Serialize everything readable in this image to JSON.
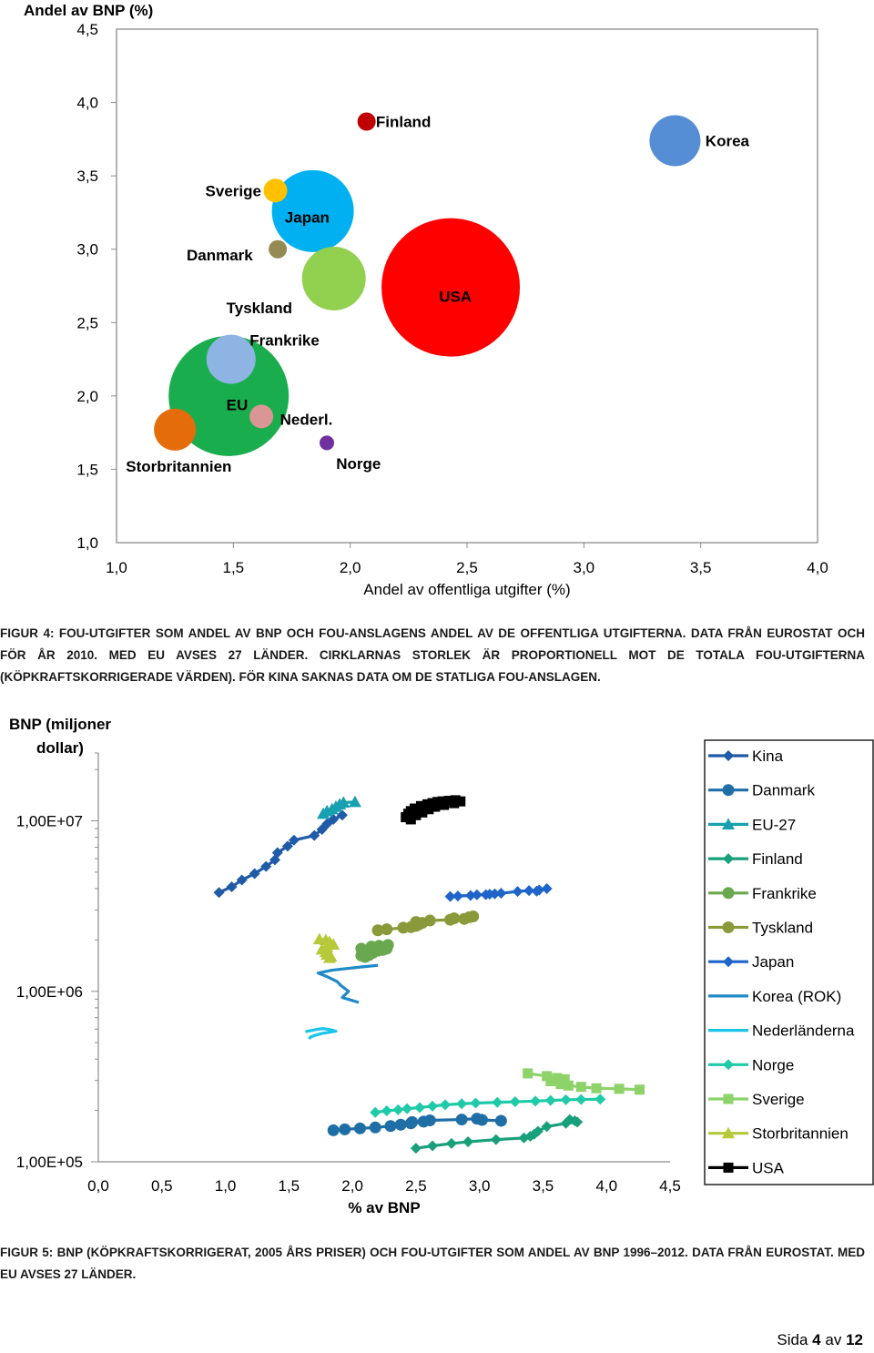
{
  "figure4": {
    "caption": "FIGUR 4: FoU-utgifter som andel av BNP och FoU-anslagens andel av de offentliga utgifterna. Data från Eurostat och för år 2010. Med EU avses 27 länder. Cirklarnas storlek är proportionell mot de totala FoU-utgifterna (köpkraftskorrigerade värden). För Kina saknas data om de statliga FoU-anslagen."
  },
  "figure5": {
    "caption": "FIGUR 5: BNP (köpkraftskorrigerat, 2005 års priser) och FoU-utgifter som andel av BNP 1996–2012. Data från Eurostat. Med EU avses 27 länder."
  },
  "footer": {
    "prefix": "Sida",
    "page": "4",
    "middle": "av",
    "total": "12"
  },
  "chart_data": [
    {
      "type": "scatter",
      "variant": "bubble",
      "title": "",
      "xlabel": "Andel av offentliga utgifter (%)",
      "ylabel": "Andel av BNP (%)",
      "xlim": [
        1.0,
        4.0
      ],
      "ylim": [
        1.0,
        4.5
      ],
      "xticks": [
        "1,0",
        "1,5",
        "2,0",
        "2,5",
        "3,0",
        "3,5",
        "4,0"
      ],
      "yticks": [
        "1,0",
        "1,5",
        "2,0",
        "2,5",
        "3,0",
        "3,5",
        "4,0",
        "4,5"
      ],
      "grid": false,
      "legend": "none",
      "points": [
        {
          "name": "EU",
          "x": 1.48,
          "y": 2.0,
          "size": 66,
          "color": "#1aad4d",
          "label_x": 1.47,
          "label_y": 1.94
        },
        {
          "name": "USA",
          "x": 2.43,
          "y": 2.74,
          "size": 76,
          "color": "#ff0000",
          "label_x": 2.38,
          "label_y": 2.68
        },
        {
          "name": "Japan",
          "x": 1.84,
          "y": 3.26,
          "size": 45,
          "color": "#00b0f0",
          "label_x": 1.72,
          "label_y": 3.22
        },
        {
          "name": "Tyskland",
          "x": 1.93,
          "y": 2.8,
          "size": 35,
          "color": "#92d050",
          "label_x": 1.47,
          "label_y": 2.6
        },
        {
          "name": "Frankrike",
          "x": 1.49,
          "y": 2.25,
          "size": 27,
          "color": "#8db4e2",
          "label_x": 1.57,
          "label_y": 2.38
        },
        {
          "name": "Korea",
          "x": 3.39,
          "y": 3.74,
          "size": 28,
          "color": "#558ed5",
          "label_x": 3.52,
          "label_y": 3.74
        },
        {
          "name": "Storbritannien",
          "x": 1.25,
          "y": 1.77,
          "size": 23,
          "color": "#e46c0a",
          "label_x": 1.04,
          "label_y": 1.52
        },
        {
          "name": "Finland",
          "x": 2.07,
          "y": 3.87,
          "size": 10,
          "color": "#c00000",
          "label_x": 2.11,
          "label_y": 3.87
        },
        {
          "name": "Sverige",
          "x": 1.68,
          "y": 3.4,
          "size": 13,
          "color": "#ffc000",
          "label_x": 1.38,
          "label_y": 3.4
        },
        {
          "name": "Danmark",
          "x": 1.69,
          "y": 3.0,
          "size": 10,
          "color": "#948a54",
          "label_x": 1.3,
          "label_y": 2.96
        },
        {
          "name": "Nederl.",
          "x": 1.62,
          "y": 1.86,
          "size": 13,
          "color": "#d99694",
          "label_x": 1.7,
          "label_y": 1.84
        },
        {
          "name": "Norge",
          "x": 1.9,
          "y": 1.68,
          "size": 8,
          "color": "#7030a0",
          "label_x": 1.94,
          "label_y": 1.54
        }
      ]
    },
    {
      "type": "line",
      "variant": "log-y",
      "title": "",
      "xlabel": "% av BNP",
      "ylabel": "BNP (miljoner dollar)",
      "xlim": [
        0.0,
        4.5
      ],
      "ylim": [
        100000,
        25000000
      ],
      "yscale": "log",
      "xticks": [
        "0,0",
        "0,5",
        "1,0",
        "1,5",
        "2,0",
        "2,5",
        "3,0",
        "3,5",
        "4,0",
        "4,5"
      ],
      "yticks": [
        "1,00E+05",
        "1,00E+06",
        "1,00E+07"
      ],
      "yticks_values": [
        100000,
        1000000,
        10000000
      ],
      "grid": false,
      "legend": "right",
      "series": [
        {
          "name": "Kina",
          "color": "#1f5ba6",
          "marker": "diamond",
          "x": [
            0.95,
            1.05,
            1.13,
            1.23,
            1.32,
            1.39,
            1.41,
            1.49,
            1.54,
            1.7,
            1.76,
            1.8,
            1.85,
            1.92
          ],
          "y": [
            3800000.0,
            4100000.0,
            4500000.0,
            4900000.0,
            5400000.0,
            5900000.0,
            6500000.0,
            7100000.0,
            7700000.0,
            8200000.0,
            8900000.0,
            9600000.0,
            10200000.0,
            10800000.0
          ]
        },
        {
          "name": "Danmark",
          "color": "#1f6fa6",
          "marker": "circle",
          "x": [
            1.85,
            1.94,
            2.06,
            2.18,
            2.3,
            2.38,
            2.46,
            2.47,
            2.56,
            2.61,
            2.86,
            2.98,
            3.02,
            3.17
          ],
          "y": [
            153000,
            155000,
            157000,
            159000,
            162000,
            165000,
            168000,
            171000,
            172000,
            175000,
            177000,
            179000,
            176000,
            174000
          ]
        },
        {
          "name": "EU-27",
          "color": "#17a0b0",
          "marker": "triangle",
          "x": [
            1.77,
            1.8,
            1.84,
            1.87,
            1.9,
            1.93,
            2.02
          ],
          "y": [
            11000000.0,
            11400000.0,
            11700000.0,
            12100000.0,
            12500000.0,
            12800000.0,
            12900000.0
          ]
        },
        {
          "name": "Finland",
          "color": "#18a07a",
          "marker": "diamond",
          "x": [
            2.5,
            2.63,
            2.78,
            2.91,
            3.13,
            3.35,
            3.4,
            3.43,
            3.46,
            3.53,
            3.68,
            3.77,
            3.75,
            3.71
          ],
          "y": [
            120000,
            124000,
            128000,
            131000,
            135000,
            138000,
            141000,
            145000,
            151000,
            161000,
            168000,
            171000,
            174000,
            177000
          ]
        },
        {
          "name": "Frankrike",
          "color": "#6aa84f",
          "marker": "circle",
          "x": [
            2.07,
            2.09,
            2.1,
            2.07,
            2.1,
            2.13,
            2.16,
            2.2,
            2.18,
            2.15,
            2.21,
            2.28,
            2.27,
            2.24
          ],
          "y": [
            1780000.0,
            1720000.0,
            1660000.0,
            1620000.0,
            1590000.0,
            1630000.0,
            1680000.0,
            1730000.0,
            1780000.0,
            1830000.0,
            1850000.0,
            1870000.0,
            1780000.0,
            1750000.0
          ]
        },
        {
          "name": "Tyskland",
          "color": "#8a9a3a",
          "marker": "circle",
          "x": [
            2.2,
            2.27,
            2.4,
            2.46,
            2.5,
            2.52,
            2.55,
            2.5,
            2.61,
            2.77,
            2.8,
            2.88,
            2.92,
            2.95
          ],
          "y": [
            2280000.0,
            2310000.0,
            2360000.0,
            2380000.0,
            2420000.0,
            2460000.0,
            2520000.0,
            2550000.0,
            2600000.0,
            2630000.0,
            2680000.0,
            2660000.0,
            2720000.0,
            2750000.0
          ]
        },
        {
          "name": "Japan",
          "color": "#1f64c8",
          "marker": "diamond",
          "x": [
            2.77,
            2.83,
            2.93,
            2.98,
            3.05,
            3.08,
            3.12,
            3.17,
            3.3,
            3.39,
            3.45,
            3.47,
            3.53
          ],
          "y": [
            3600000.0,
            3620000.0,
            3650000.0,
            3680000.0,
            3690000.0,
            3710000.0,
            3730000.0,
            3760000.0,
            3850000.0,
            3900000.0,
            3870000.0,
            3930000.0,
            4000000.0
          ]
        },
        {
          "name": "Korea (ROK)",
          "color": "#1f8ac8",
          "marker": "none",
          "x": [
            2.2,
            2.07,
            1.84,
            1.73,
            1.81,
            1.88,
            1.91,
            1.97,
            1.92,
            2.05
          ],
          "y": [
            1420000.0,
            1390000.0,
            1330000.0,
            1280000.0,
            1210000.0,
            1140000.0,
            1080000.0,
            1000000.0,
            920000,
            860000
          ]
        },
        {
          "name": "Nederländerna",
          "color": "#19c4e8",
          "marker": "none",
          "x": [
            1.63,
            1.69,
            1.73,
            1.77,
            1.82,
            1.87,
            1.76,
            1.71,
            1.67,
            1.66
          ],
          "y": [
            580000,
            592000,
            600000,
            604000,
            597000,
            584000,
            566000,
            553000,
            540000,
            525000
          ]
        },
        {
          "name": "Norge",
          "color": "#1fcaa8",
          "marker": "diamond",
          "x": [
            2.18,
            2.27,
            2.36,
            2.43,
            2.53,
            2.63,
            2.73,
            2.86,
            2.97,
            3.14,
            3.28,
            3.44,
            3.56,
            3.68,
            3.8,
            3.95
          ],
          "y": [
            195000,
            199000,
            202000,
            205000,
            208000,
            212000,
            216000,
            219000,
            221000,
            223000,
            225000,
            227000,
            229000,
            231000,
            232000,
            233000
          ]
        },
        {
          "name": "Sverige",
          "color": "#8ed36a",
          "marker": "square",
          "x": [
            3.38,
            3.53,
            3.61,
            3.67,
            3.56,
            3.64,
            3.7,
            3.8,
            3.92,
            4.1,
            4.26
          ],
          "y": [
            330000,
            318000,
            310000,
            305000,
            297000,
            286000,
            280000,
            275000,
            270000,
            268000,
            265000
          ]
        },
        {
          "name": "Storbritannien",
          "color": "#b5c93a",
          "marker": "triangle",
          "x": [
            1.74,
            1.79,
            1.82,
            1.85,
            1.8,
            1.76,
            1.79,
            1.8,
            1.83,
            1.82
          ],
          "y": [
            2020000.0,
            2000000.0,
            1950000.0,
            1880000.0,
            1820000.0,
            1760000.0,
            1700000.0,
            1640000.0,
            1600000.0,
            1570000.0
          ]
        },
        {
          "name": "USA",
          "color": "#000000",
          "marker": "square",
          "x": [
            2.42,
            2.44,
            2.46,
            2.49,
            2.54,
            2.59,
            2.63,
            2.67,
            2.71,
            2.76,
            2.81,
            2.85,
            2.8,
            2.72,
            2.65,
            2.6,
            2.55,
            2.5,
            2.46
          ],
          "y": [
            10500000.0,
            11000000.0,
            11400000.0,
            11800000.0,
            12200000.0,
            12500000.0,
            12700000.0,
            12900000.0,
            13000000.0,
            13100000.0,
            13200000.0,
            13000000.0,
            12700000.0,
            12400000.0,
            12100000.0,
            11700000.0,
            11200000.0,
            10800000.0,
            10200000.0
          ]
        }
      ]
    }
  ]
}
